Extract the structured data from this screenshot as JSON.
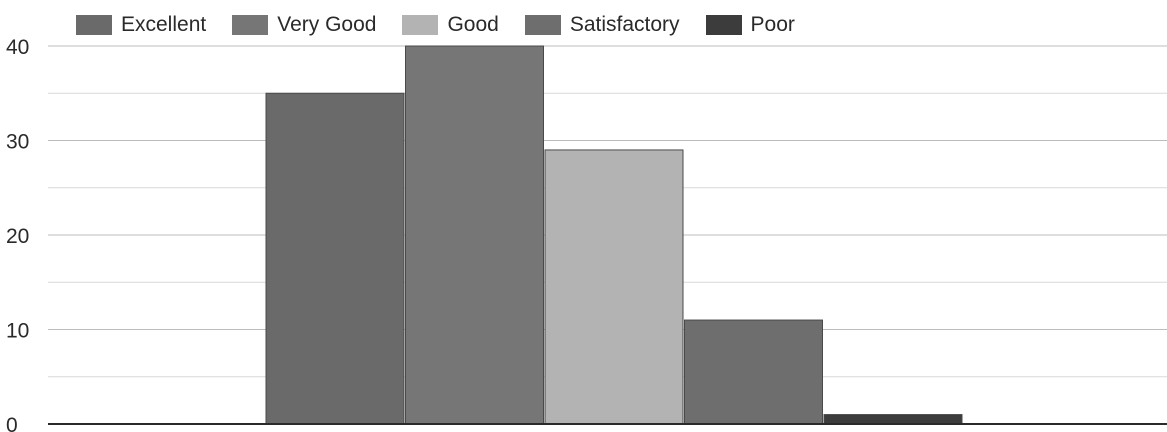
{
  "chart_data": {
    "type": "bar",
    "categories": [
      ""
    ],
    "series": [
      {
        "name": "Excellent",
        "values": [
          35
        ],
        "color": "#6a6a6a"
      },
      {
        "name": "Very Good",
        "values": [
          40
        ],
        "color": "#767676"
      },
      {
        "name": "Good",
        "values": [
          29
        ],
        "color": "#b3b3b3"
      },
      {
        "name": "Satisfactory",
        "values": [
          11
        ],
        "color": "#6e6e6e"
      },
      {
        "name": "Poor",
        "values": [
          1
        ],
        "color": "#3c3c3c"
      }
    ],
    "title": "",
    "xlabel": "",
    "ylabel": "",
    "ylim": [
      0,
      40
    ],
    "yticks": [
      0,
      10,
      20,
      30,
      40
    ],
    "yticks_text": [
      "0",
      "10",
      "20",
      "30",
      "40"
    ],
    "grid": true,
    "legend_position": "top-left"
  }
}
